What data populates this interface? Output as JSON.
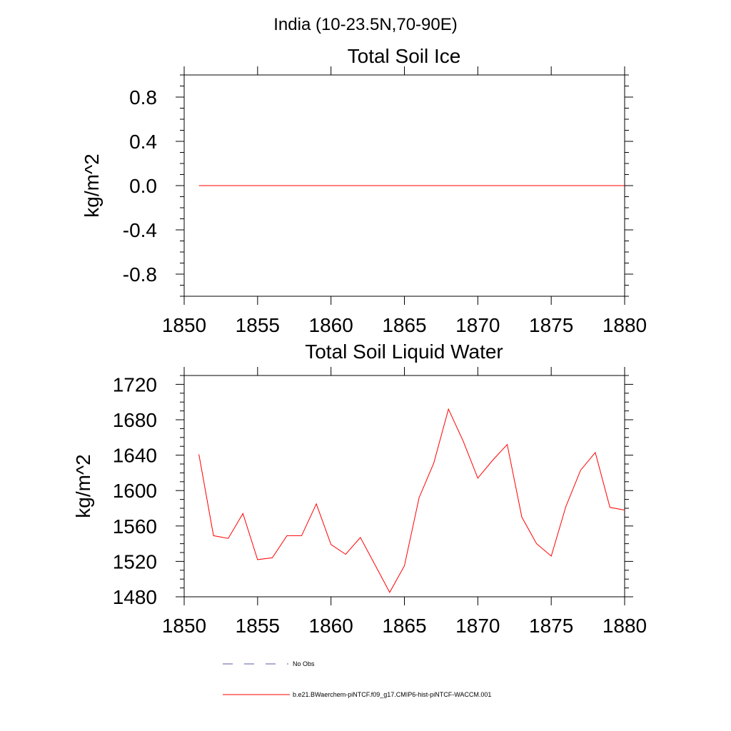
{
  "figure": {
    "title": "India (10-23.5N,70-90E)"
  },
  "chart_data": [
    {
      "type": "line",
      "title": "Total Soil Ice",
      "xlabel": "",
      "ylabel": "kg/m^2",
      "xlim": [
        1850,
        1880
      ],
      "ylim": [
        -1.0,
        1.0
      ],
      "x_ticks": [
        1850,
        1855,
        1860,
        1865,
        1870,
        1875,
        1880
      ],
      "x_tick_labels": [
        "1850",
        "1855",
        "1860",
        "1865",
        "1870",
        "1875",
        "1880"
      ],
      "y_ticks": [
        -0.8,
        -0.4,
        0.0,
        0.4,
        0.8
      ],
      "y_tick_labels": [
        "-0.8",
        "-0.4",
        "0.0",
        "0.4",
        "0.8"
      ],
      "grid": false,
      "series": [
        {
          "name": "b.e21.BWaerchem-piNTCF.f09_g17.CMIP6-hist-piNTCF-WACCM.001",
          "color": "#ff0000",
          "x": [
            1851,
            1852,
            1853,
            1854,
            1855,
            1856,
            1857,
            1858,
            1859,
            1860,
            1861,
            1862,
            1863,
            1864,
            1865,
            1866,
            1867,
            1868,
            1869,
            1870,
            1871,
            1872,
            1873,
            1874,
            1875,
            1876,
            1877,
            1878,
            1879,
            1880
          ],
          "y": [
            0,
            0,
            0,
            0,
            0,
            0,
            0,
            0,
            0,
            0,
            0,
            0,
            0,
            0,
            0,
            0,
            0,
            0,
            0,
            0,
            0,
            0,
            0,
            0,
            0,
            0,
            0,
            0,
            0,
            0
          ]
        }
      ]
    },
    {
      "type": "line",
      "title": "Total Soil Liquid Water",
      "xlabel": "",
      "ylabel": "kg/m^2",
      "xlim": [
        1850,
        1880
      ],
      "ylim": [
        1480,
        1730
      ],
      "x_ticks": [
        1850,
        1855,
        1860,
        1865,
        1870,
        1875,
        1880
      ],
      "x_tick_labels": [
        "1850",
        "1855",
        "1860",
        "1865",
        "1870",
        "1875",
        "1880"
      ],
      "y_ticks": [
        1480,
        1520,
        1560,
        1600,
        1640,
        1680,
        1720
      ],
      "y_tick_labels": [
        "1480",
        "1520",
        "1560",
        "1600",
        "1640",
        "1680",
        "1720"
      ],
      "grid": false,
      "series": [
        {
          "name": "b.e21.BWaerchem-piNTCF.f09_g17.CMIP6-hist-piNTCF-WACCM.001",
          "color": "#ff0000",
          "x": [
            1851,
            1852,
            1853,
            1854,
            1855,
            1856,
            1857,
            1858,
            1859,
            1860,
            1861,
            1862,
            1863,
            1864,
            1865,
            1866,
            1867,
            1868,
            1869,
            1870,
            1871,
            1872,
            1873,
            1874,
            1875,
            1876,
            1877,
            1878,
            1879,
            1880
          ],
          "y": [
            1641,
            1549,
            1546,
            1574,
            1522,
            1524,
            1549,
            1549,
            1585,
            1539,
            1528,
            1547,
            1516,
            1485,
            1515,
            1592,
            1631,
            1692,
            1656,
            1614,
            1634,
            1652,
            1570,
            1540,
            1526,
            1582,
            1623,
            1643,
            1581,
            1578
          ]
        }
      ]
    }
  ],
  "legend": {
    "items": [
      {
        "label": "No Obs",
        "color": "#5a5aa0",
        "style": "dashed"
      },
      {
        "label": "b.e21.BWaerchem-piNTCF.f09_g17.CMIP6-hist-piNTCF-WACCM.001",
        "color": "#ff0000",
        "style": "solid"
      }
    ]
  }
}
